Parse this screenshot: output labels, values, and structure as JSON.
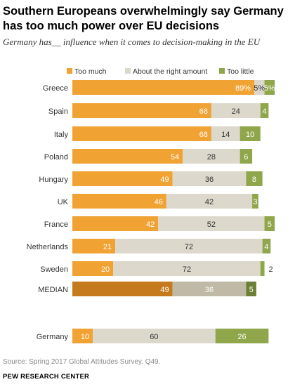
{
  "title": "Southern Europeans overwhelmingly say Germany has too much power over EU decisions",
  "subtitle": "Germany has__ influence when it comes to decision-making in the EU",
  "source": "Source: Spring 2017 Global Attitudes Survey. Q49.",
  "footer": "PEW RESEARCH CENTER",
  "chart_data": {
    "type": "bar",
    "orientation": "horizontal",
    "stacked": true,
    "legend_position": "top",
    "categories": [
      "Greece",
      "Spain",
      "Italy",
      "Poland",
      "Hungary",
      "UK",
      "France",
      "Netherlands",
      "Sweden",
      "MEDIAN",
      "Germany"
    ],
    "series": [
      {
        "name": "Too much",
        "color": "#f0a233",
        "values": [
          89,
          68,
          68,
          54,
          49,
          46,
          42,
          21,
          20,
          49,
          10
        ],
        "labels": [
          "89%",
          "68",
          "68",
          "54",
          "49",
          "46",
          "42",
          "21",
          "20",
          "49",
          "10"
        ]
      },
      {
        "name": "About the right amount",
        "color": "#dcd8cc",
        "values": [
          5,
          24,
          14,
          28,
          36,
          42,
          52,
          72,
          72,
          36,
          60
        ],
        "labels": [
          "5%",
          "24",
          "14",
          "28",
          "36",
          "42",
          "52",
          "72",
          "72",
          "36",
          "60"
        ]
      },
      {
        "name": "Too little",
        "color": "#8fa64a",
        "values": [
          5,
          4,
          10,
          6,
          8,
          3,
          5,
          4,
          2,
          5,
          26
        ],
        "labels": [
          "5%",
          "4",
          "10",
          "6",
          "8",
          "3",
          "5",
          "4",
          "2",
          "5",
          "26"
        ]
      }
    ],
    "median_colors": [
      "#c47a1d",
      "#bfb9a6",
      "#6b8034"
    ],
    "xlim": [
      0,
      100
    ]
  }
}
